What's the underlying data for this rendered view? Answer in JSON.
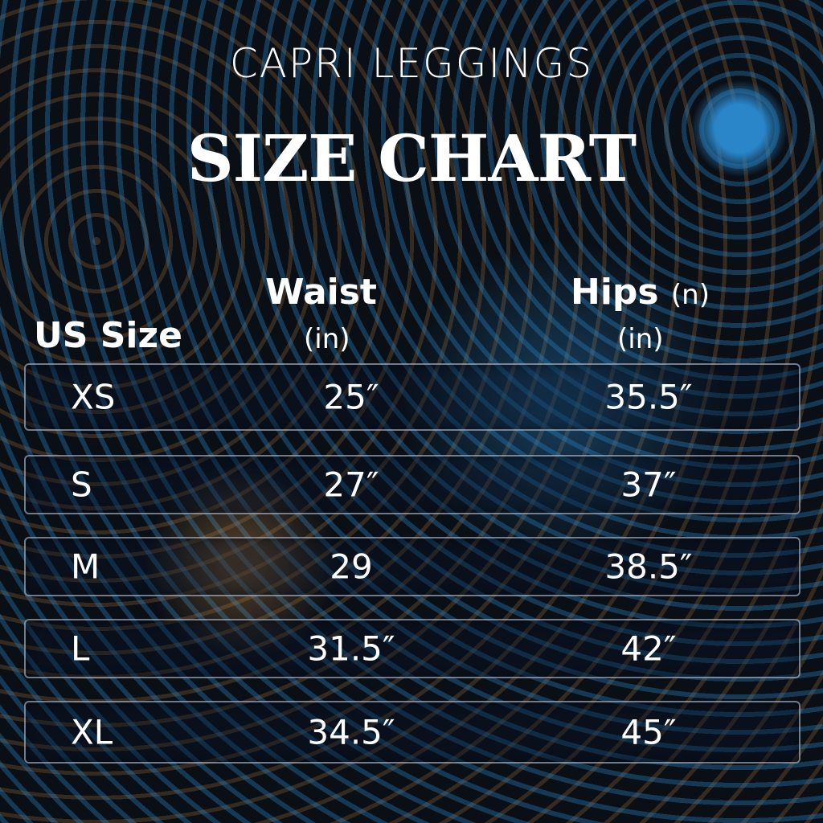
{
  "subtitle": "CAPRI LEGGINGS",
  "title": "SIZE CHART",
  "headers": {
    "size": "US Size",
    "waist": "Waist",
    "waist_unit": "(in)",
    "hips": "Hips",
    "hips_extra": "(n)",
    "hips_unit": "(in)"
  },
  "rows": [
    {
      "size": "XS",
      "waist": "25″",
      "hips": "35.5″"
    },
    {
      "size": "S",
      "waist": "27″",
      "hips": "37″"
    },
    {
      "size": "M",
      "waist": "29",
      "hips": "38.5″"
    },
    {
      "size": "L",
      "waist": "31.5″",
      "hips": "42″"
    },
    {
      "size": "XL",
      "waist": "34.5″",
      "hips": "45″"
    }
  ],
  "colors": {
    "background": "#0a0f16",
    "blue": "#2a86c9",
    "orange": "#cd8c46",
    "text": "#ffffff"
  }
}
